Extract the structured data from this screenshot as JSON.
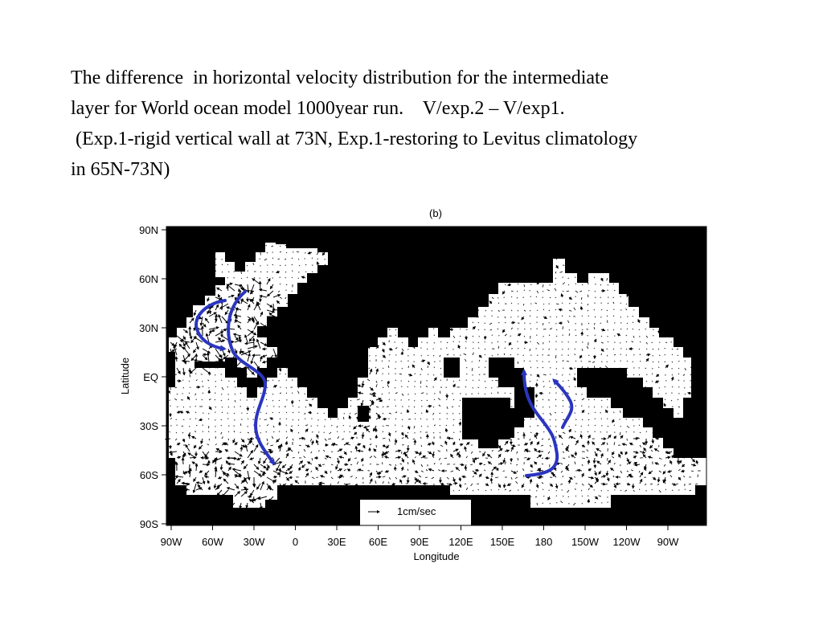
{
  "caption": {
    "line1": "The difference  in horizontal velocity distribution for the intermediate",
    "line2": "layer for World ocean model 1000year run.    V/exp.2 – V/exp1.",
    "line3": " (Exp.1-rigid vertical wall at 73N, Exp.1-restoring to Levitus climatology",
    "line4": "in 65N-73N)"
  },
  "map": {
    "panel_label": "(b)",
    "xlabel": "Longitude",
    "ylabel": "Latitude",
    "x_ticks": [
      "90W",
      "60W",
      "30W",
      "0",
      "30E",
      "60E",
      "90E",
      "120E",
      "150E",
      "180",
      "150W",
      "120W",
      "90W"
    ],
    "y_ticks": [
      "90N",
      "60N",
      "30N",
      "EQ",
      "30S",
      "60S",
      "90S"
    ],
    "reference_vector": {
      "label": "1cm/sec"
    },
    "colors": {
      "land": "#000000",
      "ocean": "#ffffff",
      "flow_arrows": "#2b35c0"
    }
  }
}
